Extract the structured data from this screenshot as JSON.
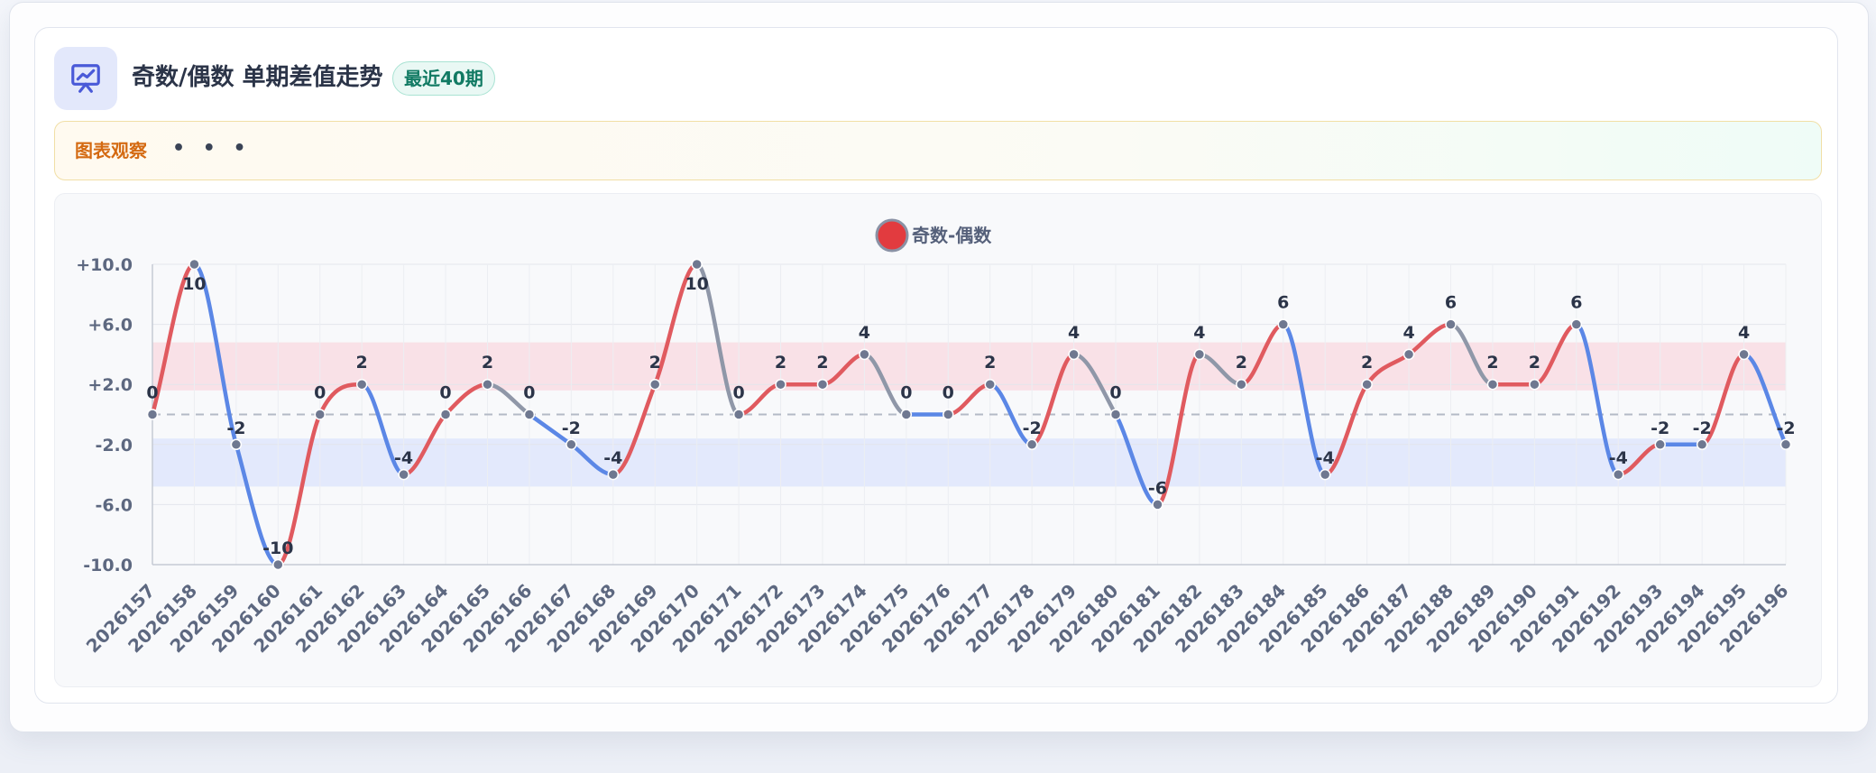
{
  "header": {
    "title": "奇数/偶数 单期差值走势",
    "badge": "最近40期",
    "icon": "presentation-chart-icon"
  },
  "observation": {
    "label": "图表观察",
    "more": "• • •"
  },
  "colors": {
    "positive": "#e05a5f",
    "negative": "#5b87e6",
    "neutral": "#8f97a8",
    "positive_band": "#f9dde3",
    "negative_band": "#dfe6fb"
  },
  "chart_data": {
    "type": "line",
    "legend": [
      "奇数-偶数"
    ],
    "legend_position": "top-center",
    "x": [
      "2026157",
      "2026158",
      "2026159",
      "2026160",
      "2026161",
      "2026162",
      "2026163",
      "2026164",
      "2026165",
      "2026166",
      "2026167",
      "2026168",
      "2026169",
      "2026170",
      "2026171",
      "2026172",
      "2026173",
      "2026174",
      "2026175",
      "2026176",
      "2026177",
      "2026178",
      "2026179",
      "2026180",
      "2026181",
      "2026182",
      "2026183",
      "2026184",
      "2026185",
      "2026186",
      "2026187",
      "2026188",
      "2026189",
      "2026190",
      "2026191",
      "2026192",
      "2026193",
      "2026194",
      "2026195",
      "2026196"
    ],
    "series": [
      {
        "name": "奇数-偶数",
        "values": [
          0,
          10,
          -2,
          -10,
          0,
          2,
          -4,
          0,
          2,
          0,
          -2,
          -4,
          2,
          10,
          0,
          2,
          2,
          4,
          0,
          0,
          2,
          -2,
          4,
          0,
          -6,
          4,
          2,
          6,
          -4,
          2,
          4,
          6,
          2,
          2,
          6,
          -4,
          -2,
          -2,
          4,
          -2
        ]
      }
    ],
    "yticks": [
      10,
      6,
      2,
      -2,
      -6,
      -10
    ],
    "ytick_labels": [
      "+10.0",
      "+6.0",
      "+2.0",
      "-2.0",
      "-6.0",
      "-10.0"
    ],
    "ylim": [
      -10,
      10
    ],
    "reference_line": 0,
    "bands": [
      {
        "from": 1.6,
        "to": 4.8,
        "kind": "positive"
      },
      {
        "from": -1.6,
        "to": -4.8,
        "kind": "negative"
      }
    ],
    "grid": true
  }
}
